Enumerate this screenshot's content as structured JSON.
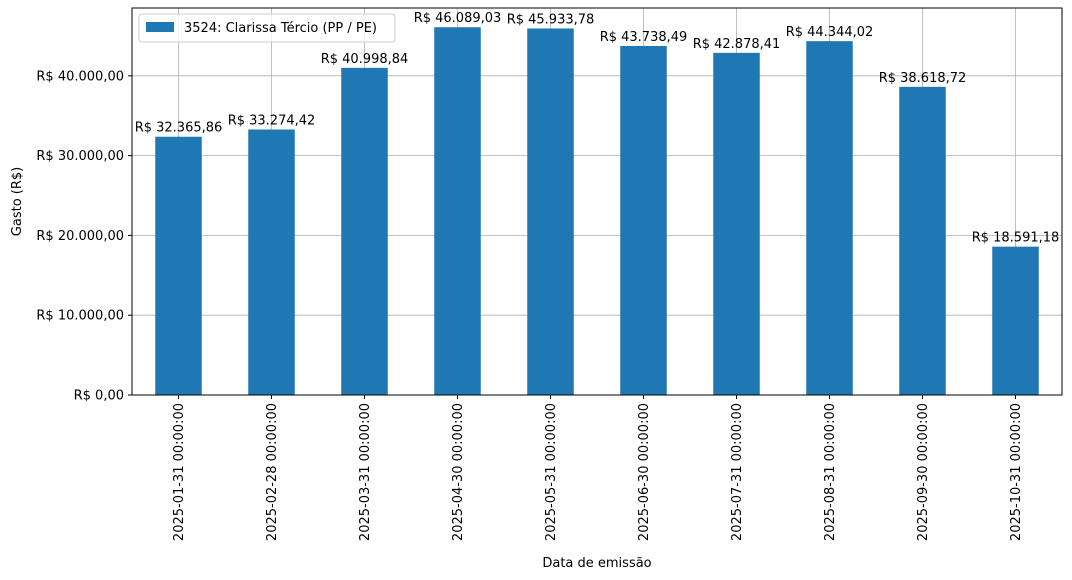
{
  "chart_data": {
    "type": "bar",
    "xlabel": "Data de emissão",
    "ylabel": "Gasto (R$)",
    "ylim": [
      0,
      48500
    ],
    "grid": true,
    "legend_position": "top-left",
    "categories": [
      "2025-01-31 00:00:00",
      "2025-02-28 00:00:00",
      "2025-03-31 00:00:00",
      "2025-04-30 00:00:00",
      "2025-05-31 00:00:00",
      "2025-06-30 00:00:00",
      "2025-07-31 00:00:00",
      "2025-08-31 00:00:00",
      "2025-09-30 00:00:00",
      "2025-10-31 00:00:00"
    ],
    "series": [
      {
        "name": "3524: Clarissa Tércio (PP / PE)",
        "color": "#1f77b4",
        "values": [
          32365.86,
          33274.42,
          40998.84,
          46089.03,
          45933.78,
          43738.49,
          42878.41,
          44344.02,
          38618.72,
          18591.18
        ],
        "labels": [
          "R$ 32.365,86",
          "R$ 33.274,42",
          "R$ 40.998,84",
          "R$ 46.089,03",
          "R$ 45.933,78",
          "R$ 43.738,49",
          "R$ 42.878,41",
          "R$ 44.344,02",
          "R$ 38.618,72",
          "R$ 18.591,18"
        ]
      }
    ],
    "y_ticks": [
      0,
      10000,
      20000,
      30000,
      40000
    ],
    "y_tick_labels": [
      "R$ 0,00",
      "R$ 10.000,00",
      "R$ 20.000,00",
      "R$ 30.000,00",
      "R$ 40.000,00"
    ]
  }
}
